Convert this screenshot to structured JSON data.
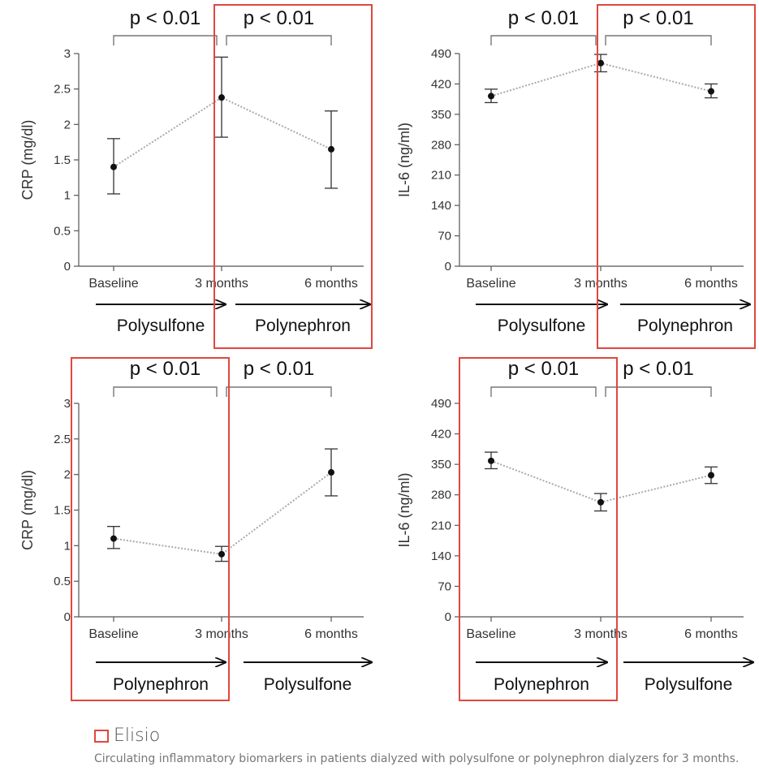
{
  "chart_data": [
    {
      "type": "line",
      "ylabel": "CRP (mg/dl)",
      "categories": [
        "Baseline",
        "3 months",
        "6 months"
      ],
      "yticks": [
        "0",
        "0.5",
        "1",
        "1.5",
        "2",
        "2.5",
        "3"
      ],
      "ylim": [
        0,
        3
      ],
      "series": [
        {
          "values": [
            1.4,
            2.38,
            1.65
          ],
          "err_low": [
            1.02,
            1.82,
            1.1
          ],
          "err_high": [
            1.8,
            2.95,
            2.19
          ]
        }
      ],
      "pvalues": [
        "p < 0.01",
        "p < 0.01"
      ],
      "arrow_labels": [
        "Polysulfone",
        "Polynephron"
      ],
      "highlight": "3 months to 6 months"
    },
    {
      "type": "line",
      "ylabel": "IL-6 (ng/ml)",
      "categories": [
        "Baseline",
        "3 months",
        "6 months"
      ],
      "yticks": [
        "0",
        "70",
        "140",
        "210",
        "280",
        "350",
        "420",
        "490"
      ],
      "ylim": [
        0,
        490
      ],
      "series": [
        {
          "values": [
            392,
            468,
            403
          ],
          "err_low": [
            377,
            448,
            388
          ],
          "err_high": [
            408,
            488,
            420
          ]
        }
      ],
      "pvalues": [
        "p < 0.01",
        "p < 0.01"
      ],
      "arrow_labels": [
        "Polysulfone",
        "Polynephron"
      ],
      "highlight": "3 months to 6 months"
    },
    {
      "type": "line",
      "ylabel": "CRP (mg/dl)",
      "categories": [
        "Baseline",
        "3 months",
        "6 months"
      ],
      "yticks": [
        "0",
        "0.5",
        "1",
        "1.5",
        "2",
        "2.5",
        "3"
      ],
      "ylim": [
        0,
        3
      ],
      "series": [
        {
          "values": [
            1.1,
            0.88,
            2.03
          ],
          "err_low": [
            0.96,
            0.78,
            1.7
          ],
          "err_high": [
            1.27,
            0.99,
            2.36
          ]
        }
      ],
      "pvalues": [
        "p < 0.01",
        "p < 0.01"
      ],
      "arrow_labels": [
        "Polynephron",
        "Polysulfone"
      ],
      "highlight": "Baseline to 3 months"
    },
    {
      "type": "line",
      "ylabel": "IL-6 (ng/ml)",
      "categories": [
        "Baseline",
        "3 months",
        "6 months"
      ],
      "yticks": [
        "0",
        "70",
        "140",
        "210",
        "280",
        "350",
        "420",
        "490"
      ],
      "ylim": [
        0,
        490
      ],
      "series": [
        {
          "values": [
            358,
            263,
            325
          ],
          "err_low": [
            340,
            243,
            306
          ],
          "err_high": [
            378,
            283,
            344
          ]
        }
      ],
      "pvalues": [
        "p < 0.01",
        "p < 0.01"
      ],
      "arrow_labels": [
        "Polynephron",
        "Polysulfone"
      ],
      "highlight": "Baseline to 3 months"
    }
  ],
  "colors": {
    "highlight": "#e0473f",
    "line": "#aaaaaa",
    "marker": "#111111",
    "axis": "#555555"
  },
  "legend": {
    "label": "Elisio"
  },
  "caption": "Circulating inflammatory biomarkers in patients dialyzed with polysulfone or polynephron dialyzers for 3 months."
}
